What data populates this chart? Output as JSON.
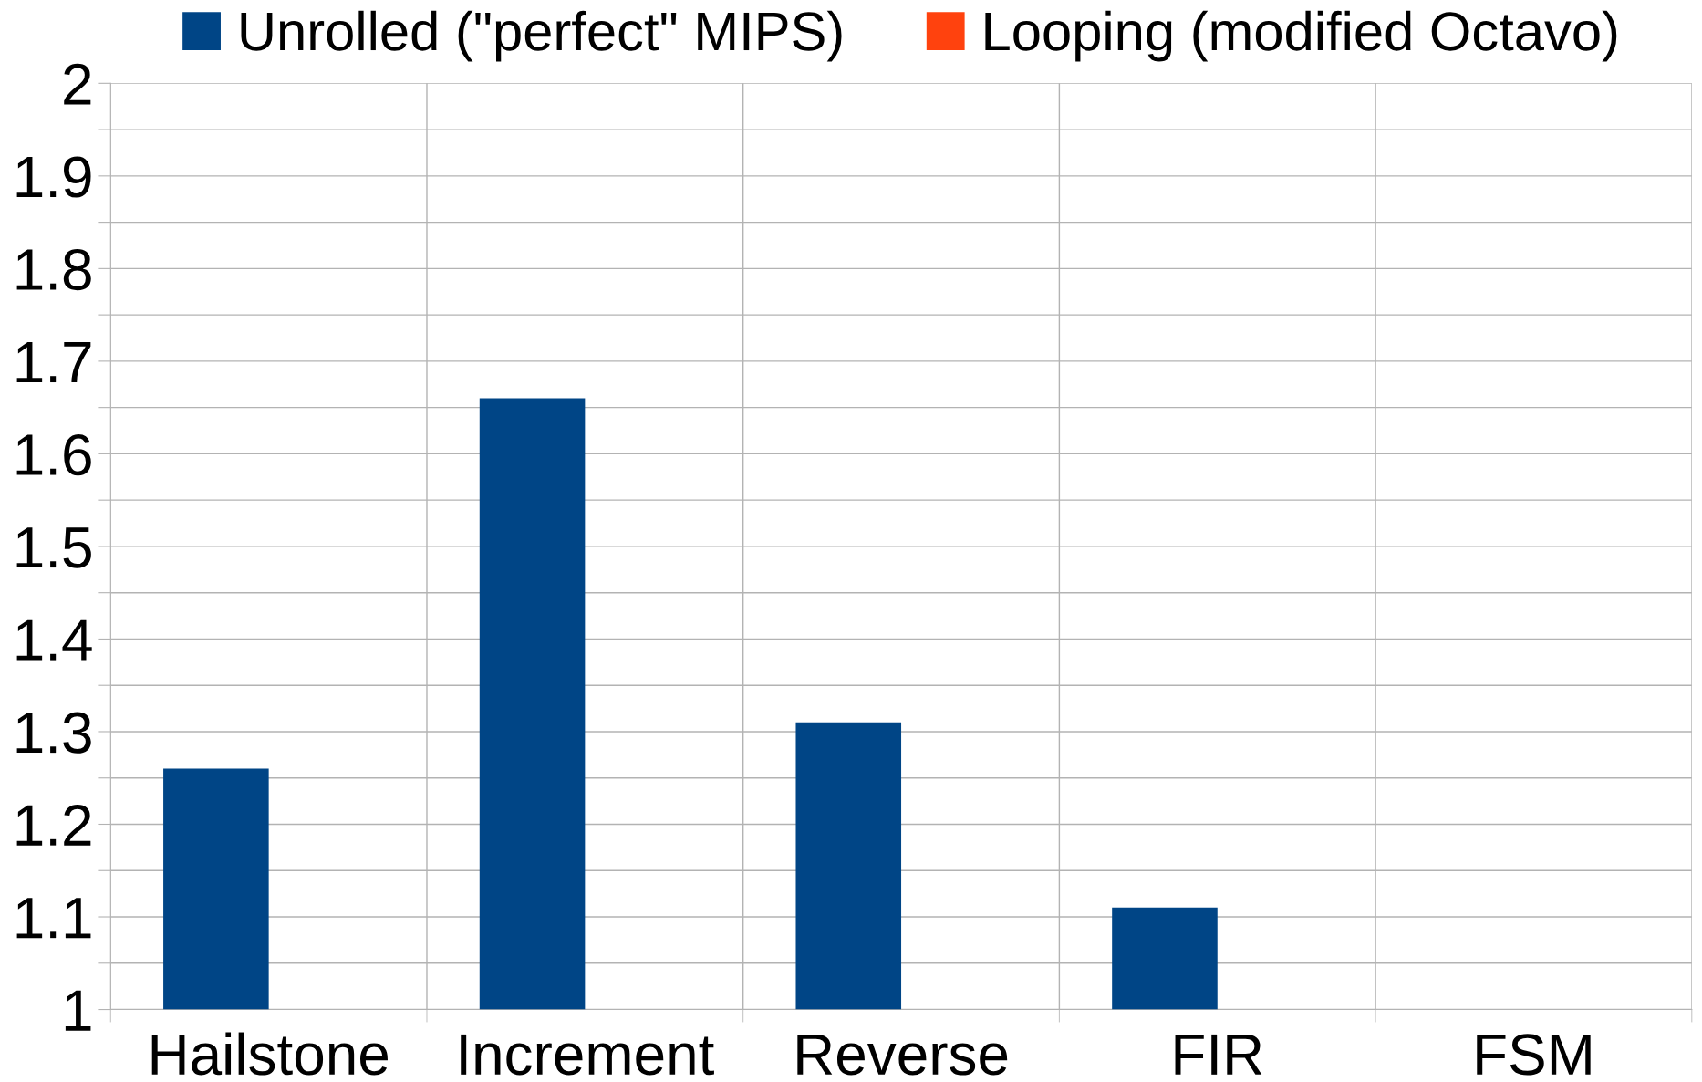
{
  "chart_data": {
    "type": "bar",
    "categories": [
      "Hailstone",
      "Increment",
      "Reverse",
      "FIR",
      "FSM"
    ],
    "series": [
      {
        "name": "Unrolled (\"perfect\" MIPS)",
        "color": "#004586",
        "values": [
          1.26,
          1.66,
          1.31,
          1.11,
          1.0
        ]
      },
      {
        "name": "Looping (modified Octavo)",
        "color": "#ff420e",
        "values": [
          1.0,
          1.0,
          1.0,
          1.0,
          1.0
        ]
      }
    ],
    "ylim": [
      1,
      2
    ],
    "yticks": [
      1,
      {
        "value": 1.05,
        "label": null
      },
      1.1,
      {
        "value": 1.15,
        "label": null
      },
      1.2,
      {
        "value": 1.25,
        "label": null
      },
      1.3,
      {
        "value": 1.35,
        "label": null
      },
      1.4,
      {
        "value": 1.45,
        "label": null
      },
      1.5,
      {
        "value": 1.55,
        "label": null
      },
      1.6,
      {
        "value": 1.65,
        "label": null
      },
      1.7,
      {
        "value": 1.75,
        "label": null
      },
      1.8,
      {
        "value": 1.85,
        "label": null
      },
      1.9,
      {
        "value": 1.95,
        "label": null
      },
      2
    ],
    "grid": true,
    "legend": "top"
  }
}
